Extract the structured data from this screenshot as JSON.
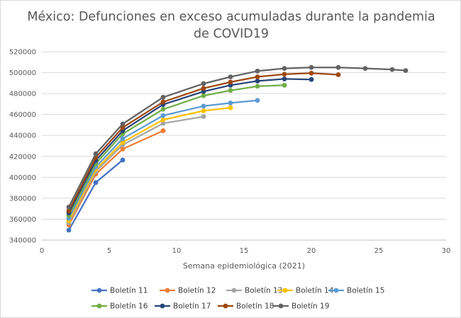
{
  "chart_data": {
    "type": "line",
    "title_line1": "México: Defunciones en exceso acumuladas durante la pandemia",
    "title_line2": "de COVID19",
    "xlabel": "Semana epidemiológica (2021)",
    "ylabel": "",
    "xlim": [
      0,
      30
    ],
    "ylim": [
      340000,
      520000
    ],
    "xticks": [
      0,
      5,
      10,
      15,
      20,
      25,
      30
    ],
    "yticks": [
      340000,
      360000,
      380000,
      400000,
      420000,
      440000,
      460000,
      480000,
      500000,
      520000
    ],
    "grid": "horizontal",
    "legend_position": "bottom",
    "series": [
      {
        "name": "Boletín 11",
        "color": "#4472C4",
        "x": [
          2,
          4,
          6
        ],
        "y": [
          349500,
          395000,
          416500
        ]
      },
      {
        "name": "Boletín 12",
        "color": "#ED7D31",
        "x": [
          2,
          4,
          6,
          9
        ],
        "y": [
          354500,
          403000,
          427000,
          444500
        ]
      },
      {
        "name": "Boletín 13",
        "color": "#A5A5A5",
        "x": [
          2,
          4,
          6,
          9,
          12
        ],
        "y": [
          356500,
          405500,
          431000,
          451500,
          458000
        ]
      },
      {
        "name": "Boletín 14",
        "color": "#FFC000",
        "x": [
          2,
          4,
          6,
          9,
          12,
          14
        ],
        "y": [
          358500,
          407500,
          433500,
          455000,
          463500,
          466500
        ]
      },
      {
        "name": "Boletín 15",
        "color": "#5B9BD5",
        "x": [
          2,
          4,
          6,
          9,
          12,
          14,
          16
        ],
        "y": [
          361000,
          410000,
          437000,
          459000,
          468000,
          471000,
          473500
        ]
      },
      {
        "name": "Boletín 16",
        "color": "#70AD47",
        "x": [
          2,
          4,
          6,
          9,
          12,
          14,
          16,
          18
        ],
        "y": [
          363500,
          413000,
          441500,
          465000,
          478000,
          483000,
          487000,
          488000
        ]
      },
      {
        "name": "Boletín 17",
        "color": "#264478",
        "x": [
          2,
          4,
          6,
          9,
          12,
          14,
          16,
          18,
          20
        ],
        "y": [
          366000,
          416000,
          444500,
          469500,
          482000,
          488000,
          492000,
          494000,
          493500
        ]
      },
      {
        "name": "Boletín 18",
        "color": "#9E480E",
        "x": [
          2,
          4,
          6,
          9,
          12,
          14,
          16,
          18,
          20,
          22
        ],
        "y": [
          368000,
          419000,
          447500,
          472000,
          485000,
          491000,
          496000,
          498500,
          499500,
          498000
        ]
      },
      {
        "name": "Boletín 19",
        "color": "#636363",
        "x": [
          2,
          4,
          6,
          9,
          12,
          14,
          16,
          18,
          20,
          22,
          24,
          26,
          27
        ],
        "y": [
          371500,
          422500,
          451000,
          476500,
          489500,
          496000,
          501500,
          504000,
          505000,
          505000,
          504000,
          503000,
          502000
        ]
      }
    ]
  }
}
